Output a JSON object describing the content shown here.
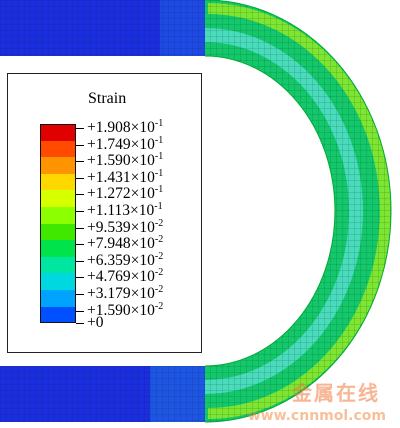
{
  "legend": {
    "title": "Strain",
    "entries": [
      {
        "mantissa": "+1.908",
        "exp": "-1"
      },
      {
        "mantissa": "+1.749",
        "exp": "-1"
      },
      {
        "mantissa": "+1.590",
        "exp": "-1"
      },
      {
        "mantissa": "+1.431",
        "exp": "-1"
      },
      {
        "mantissa": "+1.272",
        "exp": "-1"
      },
      {
        "mantissa": "+1.113",
        "exp": "-1"
      },
      {
        "mantissa": "+9.539",
        "exp": "-2"
      },
      {
        "mantissa": "+7.948",
        "exp": "-2"
      },
      {
        "mantissa": "+6.359",
        "exp": "-2"
      },
      {
        "mantissa": "+4.769",
        "exp": "-2"
      },
      {
        "mantissa": "+3.179",
        "exp": "-2"
      },
      {
        "mantissa": "+1.590",
        "exp": "-2"
      },
      {
        "mantissa": "+0",
        "exp": ""
      }
    ],
    "colors": [
      "#e00000",
      "#ff4a00",
      "#ff9400",
      "#ffd800",
      "#d6ff00",
      "#8cff00",
      "#40e800",
      "#00e34a",
      "#00e5a0",
      "#00d8e0",
      "#00a4ff",
      "#0050ff",
      "#0010e0"
    ]
  },
  "watermark": {
    "text": "金属在线",
    "url": "www.cnnmol.com"
  }
}
